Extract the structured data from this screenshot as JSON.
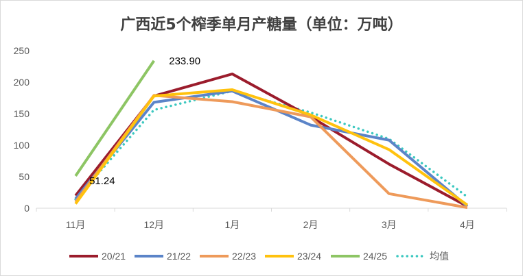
{
  "chart_data": {
    "type": "line",
    "title": "广西近5个榨季单月产糖量（单位：万吨）",
    "categories": [
      "11月",
      "12月",
      "1月",
      "2月",
      "3月",
      "4月"
    ],
    "ylim": [
      0,
      250
    ],
    "yticks": [
      0,
      50,
      100,
      150,
      200,
      250
    ],
    "grid": false,
    "legend_position": "bottom",
    "series": [
      {
        "name": "20/21",
        "color": "#9b1c2c",
        "style": "solid",
        "values": [
          20,
          178,
          213,
          145,
          70,
          3
        ]
      },
      {
        "name": "21/22",
        "color": "#5b84c8",
        "style": "solid",
        "values": [
          15,
          168,
          186,
          132,
          108,
          3
        ]
      },
      {
        "name": "22/23",
        "color": "#ee9a5a",
        "style": "solid",
        "values": [
          10,
          179,
          169,
          145,
          23,
          1
        ]
      },
      {
        "name": "23/24",
        "color": "#ffc20e",
        "style": "solid",
        "values": [
          7,
          178,
          188,
          148,
          93,
          5
        ]
      },
      {
        "name": "24/25",
        "color": "#8dc564",
        "style": "solid",
        "values": [
          51.24,
          233.9,
          null,
          null,
          null,
          null
        ]
      },
      {
        "name": "均值",
        "color": "#3cc8c0",
        "style": "dotted",
        "values": [
          14,
          156,
          186,
          152,
          110,
          18
        ]
      }
    ],
    "annotations": [
      {
        "series": "24/25",
        "index": 0,
        "text": "51.24"
      },
      {
        "series": "24/25",
        "index": 1,
        "text": "233.90"
      }
    ]
  }
}
